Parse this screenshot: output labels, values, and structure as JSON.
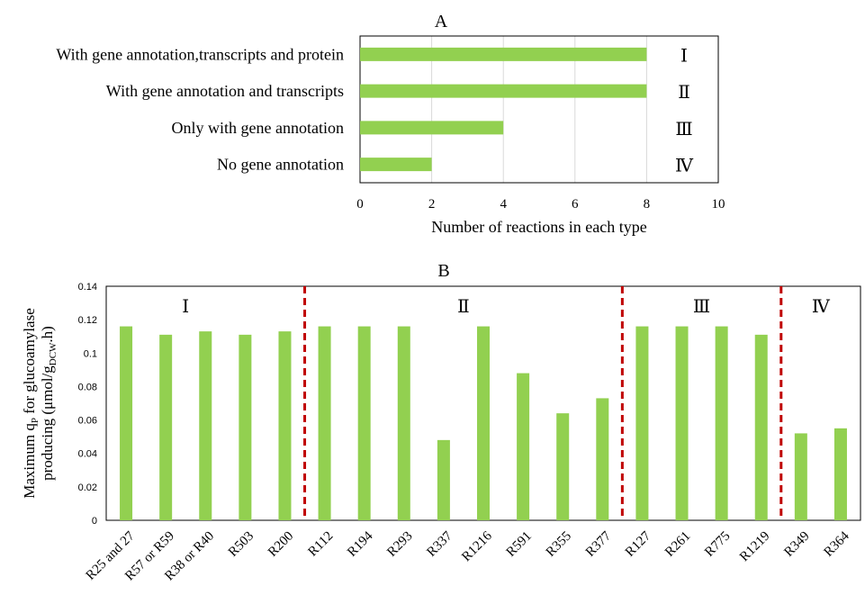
{
  "colors": {
    "bar": "#92d050",
    "divider": "#c00000",
    "grid": "#d9d9d9",
    "axis": "#000000"
  },
  "chart_data": [
    {
      "type": "bar",
      "orientation": "horizontal",
      "title": "A",
      "xlabel": "Number of reactions in each type",
      "ylabel": "",
      "categories": [
        "With gene annotation,transcripts and protein",
        "With gene annotation and transcripts",
        "Only with gene annotation",
        "No gene annotation"
      ],
      "values": [
        8,
        8,
        4,
        2
      ],
      "type_labels": [
        "Ⅰ",
        "Ⅱ",
        "Ⅲ",
        "Ⅳ"
      ],
      "xlim": [
        0,
        10
      ],
      "xticks": [
        "0",
        "2",
        "4",
        "6",
        "8",
        "10"
      ],
      "grid": true
    },
    {
      "type": "bar",
      "orientation": "vertical",
      "title": "B",
      "xlabel": "",
      "ylabel_main": "Maximum q",
      "ylabel_main_sub": "P",
      "ylabel_main_rest": " for glucoamylase",
      "ylabel_second": "producing (μmol/g",
      "ylabel_second_sub": "DCW",
      "ylabel_second_rest": ".h)",
      "categories": [
        "R25 and 27",
        "R57 or R59",
        "R38 or R40",
        "R503",
        "R200",
        "R112",
        "R194",
        "R293",
        "R337",
        "R1216",
        "R591",
        "R355",
        "R377",
        "R127",
        "R261",
        "R775",
        "R1219",
        "R349",
        "R364"
      ],
      "values": [
        0.116,
        0.111,
        0.113,
        0.111,
        0.113,
        0.116,
        0.116,
        0.116,
        0.048,
        0.116,
        0.088,
        0.064,
        0.073,
        0.116,
        0.116,
        0.116,
        0.111,
        0.052,
        0.055
      ],
      "ylim": [
        0,
        0.14
      ],
      "yticks": [
        "0",
        "0.02",
        "0.04",
        "0.06",
        "0.08",
        "0.1",
        "0.12",
        "0.14"
      ],
      "groups": [
        {
          "label": "Ⅰ",
          "start": 0,
          "end": 4
        },
        {
          "label": "Ⅱ",
          "start": 5,
          "end": 12
        },
        {
          "label": "Ⅲ",
          "start": 13,
          "end": 16
        },
        {
          "label": "Ⅳ",
          "start": 17,
          "end": 18
        }
      ],
      "grid": false
    }
  ]
}
